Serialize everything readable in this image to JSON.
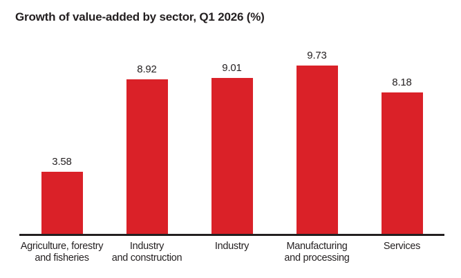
{
  "page": {
    "background": "#ffffff"
  },
  "chart_data": {
    "type": "bar",
    "title": "Growth of value-added by sector, Q1 2026 (%)",
    "categories": [
      "Agriculture, forestry\nand fisheries",
      "Industry\nand construction",
      "Industry",
      "Manufacturing\nand processing",
      "Services"
    ],
    "values": [
      3.58,
      8.92,
      9.01,
      9.73,
      8.18
    ],
    "value_labels": [
      "3.58",
      "8.92",
      "9.01",
      "9.73",
      "8.18"
    ],
    "xlabel": "",
    "ylabel": "",
    "ylim": [
      0,
      11.25
    ],
    "grid": false,
    "legend": false,
    "bar_color": "#da2128",
    "axis_color": "#231f20",
    "text_color": "#231f20"
  }
}
